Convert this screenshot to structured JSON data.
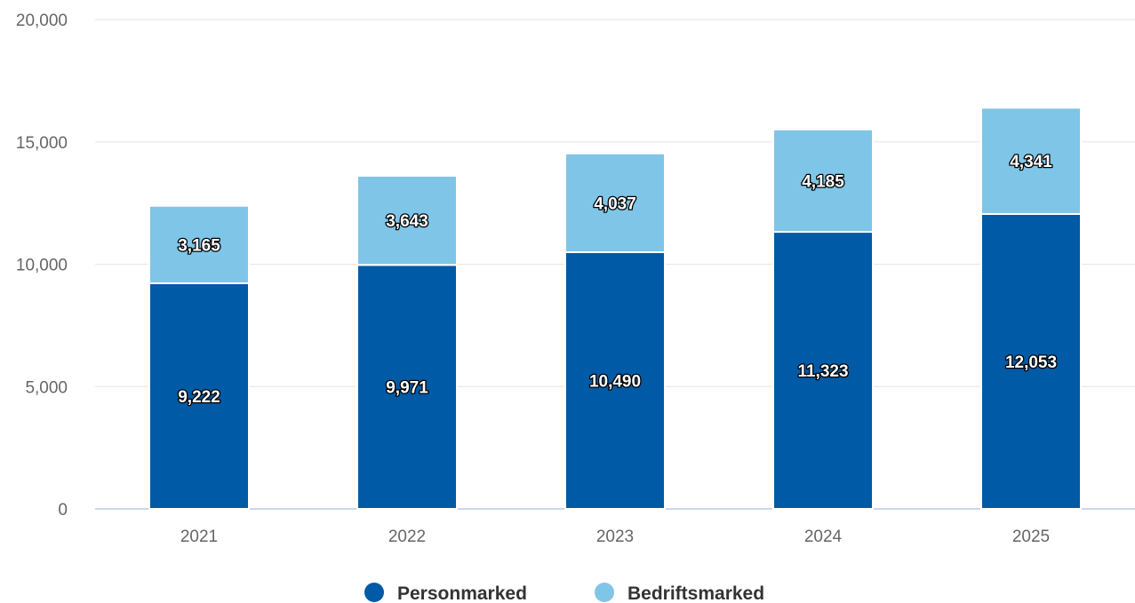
{
  "chart_data": {
    "type": "bar",
    "stacked": true,
    "title": "",
    "xlabel": "",
    "ylabel": "",
    "categories": [
      "2021",
      "2022",
      "2023",
      "2024",
      "2025"
    ],
    "series": [
      {
        "name": "Personmarked",
        "color": "#005aa5",
        "values": [
          9222,
          9971,
          10490,
          11323,
          12053
        ],
        "labels": [
          "9,222",
          "9,971",
          "10,490",
          "11,323",
          "12,053"
        ]
      },
      {
        "name": "Bedriftsmarked",
        "color": "#7fc5e7",
        "values": [
          3165,
          3643,
          4037,
          4185,
          4341
        ],
        "labels": [
          "3,165",
          "3,643",
          "4,037",
          "4,185",
          "4,341"
        ]
      }
    ],
    "ylim": [
      0,
      20000
    ],
    "yticks": [
      0,
      5000,
      10000,
      15000,
      20000
    ],
    "ytick_labels": [
      "0",
      "5,000",
      "10,000",
      "15,000",
      "20,000"
    ],
    "grid": true,
    "legend_position": "bottom-center"
  }
}
